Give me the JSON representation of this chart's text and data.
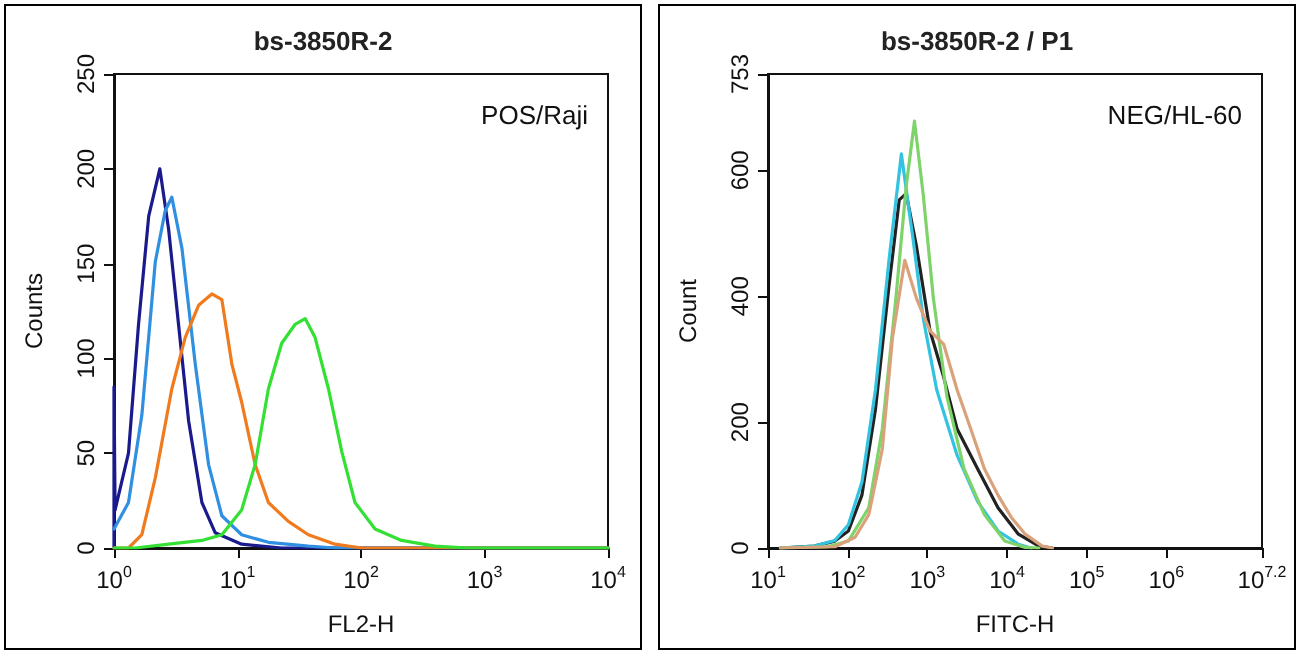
{
  "chart_data": [
    {
      "type": "line",
      "title": "bs-3850R-2",
      "xlabel": "FL2-H",
      "ylabel": "Counts",
      "annotations": [
        "POS/Raji"
      ],
      "log": "x",
      "marker": "none",
      "line_style": "solid",
      "xlim": [
        1,
        10000
      ],
      "xticks": [
        {
          "value": 1,
          "label": "10$^{0}$"
        },
        {
          "value": 10,
          "label": "10$^{1}$"
        },
        {
          "value": 100,
          "label": "10$^{2}$"
        },
        {
          "value": 1000,
          "label": "10$^{3}$"
        },
        {
          "value": 10000,
          "label": "10$^{4}$"
        }
      ],
      "ylim": [
        0,
        250
      ],
      "yticks": [
        0,
        50,
        100,
        150,
        200,
        250
      ],
      "series": [
        {
          "color": "#1a1a8c",
          "x": [
            1.0,
            1.0,
            1.02,
            1.31,
            1.58,
            1.91,
            2.35,
            2.77,
            3.33,
            4.02,
            5.15,
            6.6,
            10.8,
            22.8,
            10000
          ],
          "values": [
            0,
            85,
            20,
            50,
            118,
            175,
            200,
            168,
            118,
            67,
            24,
            8,
            2,
            0,
            0
          ]
        },
        {
          "color": "#2f8fe0",
          "x": [
            1.0,
            1.31,
            1.68,
            2.16,
            2.6,
            2.94,
            3.55,
            4.55,
            5.83,
            7.47,
            10.8,
            17.8,
            37.5,
            61.6,
            10000
          ],
          "values": [
            10,
            24,
            70,
            151,
            178,
            185,
            158,
            97,
            44,
            17,
            7,
            3,
            1,
            0,
            0
          ]
        },
        {
          "color": "#f07a1e",
          "x": [
            1.0,
            1.31,
            1.68,
            2.16,
            2.94,
            3.77,
            4.84,
            6.2,
            7.47,
            9.0,
            10.8,
            13.9,
            17.8,
            25.8,
            37.5,
            61.6,
            101,
            10000
          ],
          "values": [
            0,
            0,
            7,
            37,
            84,
            111,
            128,
            134,
            131,
            97,
            77,
            44,
            24,
            14,
            7,
            2,
            0,
            0
          ]
        },
        {
          "color": "#33e033",
          "x": [
            1.0,
            1.49,
            2.77,
            5.15,
            7.47,
            10.8,
            13.9,
            17.8,
            22.8,
            29.3,
            35.3,
            42.5,
            54.5,
            69.8,
            89.4,
            130,
            213,
            396,
            738,
            10000
          ],
          "values": [
            0,
            0,
            2,
            4,
            7,
            20,
            44,
            84,
            108,
            118,
            121,
            111,
            84,
            51,
            24,
            10,
            4,
            1,
            0,
            0
          ]
        }
      ]
    },
    {
      "type": "line",
      "title": "bs-3850R-2 / P1",
      "xlabel": "FITC-H",
      "ylabel": "Count",
      "annotations": [
        "NEG/HL-60"
      ],
      "log": "x",
      "marker": "none",
      "line_style": "solid",
      "xlim": [
        10,
        15848932
      ],
      "xticks": [
        {
          "value": 10,
          "label": "10$^{1}$"
        },
        {
          "value": 100,
          "label": "10$^{2}$"
        },
        {
          "value": 1000,
          "label": "10$^{3}$"
        },
        {
          "value": 10000,
          "label": "10$^{4}$"
        },
        {
          "value": 100000,
          "label": "10$^{5}$"
        },
        {
          "value": 1000000,
          "label": "10$^{6}$"
        },
        {
          "value": 15848932,
          "label": "10$^{7.2}$"
        }
      ],
      "ylim": [
        0,
        753
      ],
      "yticks": [
        0,
        200,
        400,
        600,
        753
      ],
      "series": [
        {
          "color": "#222222",
          "x": [
            14.3,
            38,
            69,
            102,
            151,
            223,
            331,
            444,
            542,
            728,
            1079,
            1600,
            2366,
            4270,
            7700,
            13900,
            25100,
            37150
          ],
          "values": [
            0,
            3,
            11,
            27,
            84,
            220,
            418,
            553,
            563,
            480,
            345,
            272,
            189,
            126,
            64,
            22,
            3,
            0
          ]
        },
        {
          "color": "#33c3e0",
          "x": [
            14.3,
            38,
            69,
            102,
            151,
            223,
            331,
            472,
            661,
            885,
            1312,
            2366,
            4270,
            7700,
            13900,
            20000
          ],
          "values": [
            0,
            3,
            12,
            37,
            105,
            251,
            459,
            626,
            491,
            366,
            251,
            147,
            74,
            27,
            6,
            0
          ]
        },
        {
          "color": "#7ed36a",
          "x": [
            14.3,
            56,
            102,
            184,
            272,
            403,
            542,
            689,
            885,
            1189,
            1762,
            2884,
            5200,
            9380,
            16900,
            25100
          ],
          "values": [
            0,
            2,
            11,
            64,
            189,
            397,
            574,
            678,
            563,
            397,
            240,
            126,
            53,
            11,
            1,
            0
          ]
        },
        {
          "color": "#d9a27a",
          "x": [
            14.3,
            69,
            124,
            184,
            272,
            365,
            521,
            728,
            1079,
            1600,
            2366,
            3508,
            5200,
            7700,
            11400,
            16900,
            27700,
            37150
          ],
          "values": [
            0,
            2,
            17,
            53,
            157,
            334,
            457,
            397,
            345,
            324,
            251,
            189,
            126,
            84,
            48,
            22,
            3,
            0
          ]
        }
      ]
    }
  ]
}
